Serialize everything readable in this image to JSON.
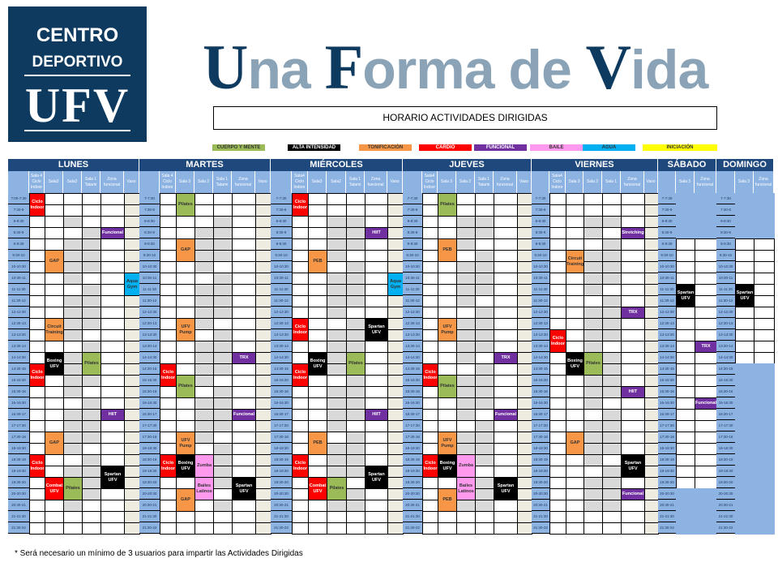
{
  "logo": {
    "line1": "CENTRO",
    "line2": "DEPORTIVO",
    "line3": "UFV"
  },
  "slogan": {
    "w1_cap": "U",
    "w1_rest": "na ",
    "w2_cap": "F",
    "w2_rest": "orma de ",
    "w3_cap": "V",
    "w3_rest": "ida"
  },
  "subtitle": "HORARIO ACTIVIDADES DIRIGIDAS",
  "legend": [
    {
      "key": "cuerpo",
      "label": "CUERPO Y MENTE",
      "color": "#9bbb59",
      "text": "#333333"
    },
    {
      "key": "alta",
      "label": "ALTA INTENSIDAD",
      "color": "#000000",
      "text": "#ffffff"
    },
    {
      "key": "tono",
      "label": "TONIFICACIÓN",
      "color": "#f79646",
      "text": "#333333"
    },
    {
      "key": "cardio",
      "label": "CARDIO",
      "color": "#ff0000",
      "text": "#ffffff"
    },
    {
      "key": "funcional",
      "label": "FUNCIONAL",
      "color": "#7030a0",
      "text": "#ffffff"
    },
    {
      "key": "baile",
      "label": "BAILE",
      "color": "#ff99ee",
      "text": "#333333"
    },
    {
      "key": "agua",
      "label": "AGUA",
      "color": "#00b0f0",
      "text": "#333333"
    },
    {
      "key": "iniciacion",
      "label": "INICIACIÓN",
      "color": "#ffff00",
      "text": "#333333"
    }
  ],
  "times": [
    "7-7:30",
    "7:30-8",
    "8-8:30",
    "8:30-9",
    "9-9:30",
    "9:30-10",
    "10-10:30",
    "10:30-11",
    "11-11:30",
    "11:30-12",
    "12-12:30",
    "12:30-13",
    "13-13:30",
    "13:30-14",
    "14-14:30",
    "14:30-15",
    "15-15:30",
    "15:30-16",
    "16-16:30",
    "16:30-17",
    "17-17:30",
    "17:30-18",
    "18-18:30",
    "18:30-19",
    "19-19:30",
    "19:30-20",
    "20-20:30",
    "20:30-21",
    "21-21:30",
    "21:30-22"
  ],
  "first_time_lunes": "7:00-7:30",
  "days": [
    {
      "name": "LUNES",
      "rooms": [
        "Sala 4 Ciclo Indoor",
        "Sala3",
        "Sala2",
        "Sala 1 Tatami",
        "Zona funcional",
        "Vaso"
      ],
      "activities": [
        {
          "room": 0,
          "start": "7:00",
          "end": "8:00",
          "name": "Ciclo Indoor",
          "cat": "cardio"
        },
        {
          "room": 4,
          "start": "8:30",
          "end": "9:00",
          "name": "Funcional",
          "cat": "funcional"
        },
        {
          "room": 1,
          "start": "9:30",
          "end": "10:30",
          "name": "GAP",
          "cat": "tono"
        },
        {
          "room": 5,
          "start": "10:30",
          "end": "11:30",
          "name": "Aqua Gym",
          "cat": "agua"
        },
        {
          "room": 1,
          "start": "12:30",
          "end": "13:30",
          "name": "Circuit Training",
          "cat": "tono"
        },
        {
          "room": 1,
          "start": "14:00",
          "end": "15:00",
          "name": "Boxing UFV",
          "cat": "alta"
        },
        {
          "room": 3,
          "start": "14:00",
          "end": "15:00",
          "name": "Pilates",
          "cat": "cuerpo"
        },
        {
          "room": 0,
          "start": "14:30",
          "end": "15:30",
          "name": "Ciclo Indoor",
          "cat": "cardio"
        },
        {
          "room": 4,
          "start": "16:30",
          "end": "17:00",
          "name": "HIIT",
          "cat": "funcional"
        },
        {
          "room": 1,
          "start": "17:30",
          "end": "18:30",
          "name": "GAP",
          "cat": "tono"
        },
        {
          "room": 0,
          "start": "18:30",
          "end": "19:30",
          "name": "Ciclo Indoor",
          "cat": "cardio"
        },
        {
          "room": 4,
          "start": "19:00",
          "end": "20:00",
          "name": "Spartan UFV",
          "cat": "alta"
        },
        {
          "room": 1,
          "start": "19:30",
          "end": "20:30",
          "name": "Combat UFV",
          "cat": "cardio"
        },
        {
          "room": 2,
          "start": "19:30",
          "end": "20:30",
          "name": "Pilates",
          "cat": "cuerpo"
        }
      ]
    },
    {
      "name": "MARTES",
      "rooms": [
        "Sala 4 Ciclo Indoor",
        "Sala 3",
        "Sala 2",
        "Sala 1 Tatami",
        "Zona funcional",
        "Vaso"
      ],
      "activities": [
        {
          "room": 1,
          "start": "7:00",
          "end": "8:00",
          "name": "Pilates",
          "cat": "cuerpo"
        },
        {
          "room": 1,
          "start": "9:00",
          "end": "10:00",
          "name": "GAP",
          "cat": "tono"
        },
        {
          "room": 1,
          "start": "12:30",
          "end": "13:30",
          "name": "UFV Pump",
          "cat": "tono"
        },
        {
          "room": 4,
          "start": "14:00",
          "end": "14:30",
          "name": "TRX",
          "cat": "funcional"
        },
        {
          "room": 0,
          "start": "14:30",
          "end": "15:30",
          "name": "Ciclo Indoor",
          "cat": "cardio"
        },
        {
          "room": 1,
          "start": "15:00",
          "end": "16:00",
          "name": "Pilates",
          "cat": "cuerpo"
        },
        {
          "room": 4,
          "start": "16:30",
          "end": "17:00",
          "name": "Funcional",
          "cat": "funcional"
        },
        {
          "room": 1,
          "start": "17:30",
          "end": "18:30",
          "name": "UFV Pump",
          "cat": "tono"
        },
        {
          "room": 0,
          "start": "18:30",
          "end": "19:30",
          "name": "Ciclo Indoor",
          "cat": "cardio"
        },
        {
          "room": 1,
          "start": "18:30",
          "end": "19:30",
          "name": "Boxing UFV",
          "cat": "alta"
        },
        {
          "room": 2,
          "start": "18:30",
          "end": "19:30",
          "name": "Zumba",
          "cat": "baile"
        },
        {
          "room": 2,
          "start": "19:30",
          "end": "20:30",
          "name": "Bailes Latinos",
          "cat": "baile"
        },
        {
          "room": 4,
          "start": "19:30",
          "end": "20:30",
          "name": "Spartan UFV",
          "cat": "alta"
        },
        {
          "room": 1,
          "start": "20:00",
          "end": "21:00",
          "name": "GAP",
          "cat": "tono"
        }
      ]
    },
    {
      "name": "MIÉRCOLES",
      "rooms": [
        "Sala4 Ciclo Indoor",
        "Sala3",
        "Sala2",
        "Sala 1 Tatami",
        "Zona funcional",
        "Vaso"
      ],
      "activities": [
        {
          "room": 0,
          "start": "7:00",
          "end": "8:00",
          "name": "Ciclo Indoor",
          "cat": "cardio"
        },
        {
          "room": 4,
          "start": "8:30",
          "end": "9:00",
          "name": "HIIT",
          "cat": "funcional"
        },
        {
          "room": 1,
          "start": "9:30",
          "end": "10:30",
          "name": "PEB",
          "cat": "tono"
        },
        {
          "room": 5,
          "start": "10:30",
          "end": "11:30",
          "name": "Aqua Gym",
          "cat": "agua"
        },
        {
          "room": 0,
          "start": "12:30",
          "end": "13:30",
          "name": "Ciclo Indoor",
          "cat": "cardio"
        },
        {
          "room": 4,
          "start": "12:30",
          "end": "13:30",
          "name": "Spartan UFV",
          "cat": "alta"
        },
        {
          "room": 1,
          "start": "14:00",
          "end": "15:00",
          "name": "Boxing UFV",
          "cat": "alta"
        },
        {
          "room": 3,
          "start": "14:00",
          "end": "15:00",
          "name": "Pilates",
          "cat": "cuerpo"
        },
        {
          "room": 0,
          "start": "14:30",
          "end": "15:30",
          "name": "Ciclo Indoor",
          "cat": "cardio"
        },
        {
          "room": 4,
          "start": "16:30",
          "end": "17:00",
          "name": "HIIT",
          "cat": "funcional"
        },
        {
          "room": 1,
          "start": "17:30",
          "end": "18:30",
          "name": "PEB",
          "cat": "tono"
        },
        {
          "room": 0,
          "start": "18:30",
          "end": "19:30",
          "name": "Ciclo Indoor",
          "cat": "cardio"
        },
        {
          "room": 4,
          "start": "19:00",
          "end": "20:00",
          "name": "Spartan UFV",
          "cat": "alta"
        },
        {
          "room": 1,
          "start": "19:30",
          "end": "20:30",
          "name": "Combat UFV",
          "cat": "cardio"
        },
        {
          "room": 2,
          "start": "19:30",
          "end": "20:30",
          "name": "Pilates",
          "cat": "cuerpo"
        }
      ]
    },
    {
      "name": "JUEVES",
      "rooms": [
        "Sala4 Ciclo Indoor",
        "Sala 3",
        "Sala 2",
        "Sala 1 Tatami",
        "Zona funcional",
        "Vaso"
      ],
      "activities": [
        {
          "room": 1,
          "start": "7:00",
          "end": "8:00",
          "name": "Pilates",
          "cat": "cuerpo"
        },
        {
          "room": 1,
          "start": "9:00",
          "end": "10:00",
          "name": "PEB",
          "cat": "tono"
        },
        {
          "room": 1,
          "start": "12:30",
          "end": "13:30",
          "name": "UFV Pump",
          "cat": "tono"
        },
        {
          "room": 4,
          "start": "14:00",
          "end": "14:30",
          "name": "TRX",
          "cat": "funcional"
        },
        {
          "room": 0,
          "start": "14:30",
          "end": "15:30",
          "name": "Ciclo Indoor",
          "cat": "cardio"
        },
        {
          "room": 1,
          "start": "15:00",
          "end": "16:00",
          "name": "Pilates",
          "cat": "cuerpo"
        },
        {
          "room": 4,
          "start": "16:30",
          "end": "17:00",
          "name": "Funcional",
          "cat": "funcional"
        },
        {
          "room": 1,
          "start": "17:30",
          "end": "18:30",
          "name": "UFV Pump",
          "cat": "tono"
        },
        {
          "room": 0,
          "start": "18:30",
          "end": "19:30",
          "name": "Ciclo Indoor",
          "cat": "cardio"
        },
        {
          "room": 1,
          "start": "18:30",
          "end": "19:30",
          "name": "Boxing UFV",
          "cat": "alta"
        },
        {
          "room": 2,
          "start": "18:30",
          "end": "19:30",
          "name": "Zumba",
          "cat": "baile"
        },
        {
          "room": 2,
          "start": "19:30",
          "end": "20:30",
          "name": "Bailes Latinos",
          "cat": "baile"
        },
        {
          "room": 4,
          "start": "19:30",
          "end": "20:30",
          "name": "Spartan UFV",
          "cat": "alta"
        },
        {
          "room": 1,
          "start": "20:00",
          "end": "21:00",
          "name": "PEB",
          "cat": "tono"
        }
      ]
    },
    {
      "name": "VIERNES",
      "rooms": [
        "Sala4 Ciclo Indoor",
        "Sala 3",
        "Sala 2",
        "Sala 1",
        "Zona funcional",
        "Vaso"
      ],
      "activities": [
        {
          "room": 4,
          "start": "8:30",
          "end": "9:00",
          "name": "Stretching",
          "cat": "funcional"
        },
        {
          "room": 1,
          "start": "9:30",
          "end": "10:30",
          "name": "Circuit Training",
          "cat": "tono"
        },
        {
          "room": 4,
          "start": "12:00",
          "end": "12:30",
          "name": "TRX",
          "cat": "funcional"
        },
        {
          "room": 0,
          "start": "13:00",
          "end": "14:00",
          "name": "Ciclo Indoor",
          "cat": "cardio"
        },
        {
          "room": 1,
          "start": "14:00",
          "end": "15:00",
          "name": "Boxing UFV",
          "cat": "alta"
        },
        {
          "room": 2,
          "start": "14:00",
          "end": "15:00",
          "name": "Pilates",
          "cat": "cuerpo"
        },
        {
          "room": 4,
          "start": "15:30",
          "end": "16:00",
          "name": "HIIT",
          "cat": "funcional"
        },
        {
          "room": 1,
          "start": "17:30",
          "end": "18:30",
          "name": "GAP",
          "cat": "tono"
        },
        {
          "room": 4,
          "start": "18:30",
          "end": "19:30",
          "name": "Spartan UFV",
          "cat": "alta"
        },
        {
          "room": 4,
          "start": "20:00",
          "end": "20:30",
          "name": "Funcional",
          "cat": "funcional"
        }
      ]
    },
    {
      "name": "SÁBADO",
      "rooms": [
        "Sala 3",
        "Zona funcional"
      ],
      "open": [
        "9:00",
        "20:00"
      ],
      "activities": [
        {
          "room": 0,
          "start": "11:00",
          "end": "12:00",
          "name": "Spartan UFV",
          "cat": "alta"
        },
        {
          "room": 1,
          "start": "13:30",
          "end": "14:00",
          "name": "TRX",
          "cat": "funcional"
        },
        {
          "room": 1,
          "start": "16:00",
          "end": "16:30",
          "name": "Funcional",
          "cat": "funcional"
        }
      ]
    },
    {
      "name": "DOMINGO",
      "rooms": [
        "Sala 3",
        "Zona funcional"
      ],
      "open": [
        "9:00",
        "14:30"
      ],
      "activities": [
        {
          "room": 0,
          "start": "11:00",
          "end": "12:00",
          "name": "Spartan UFV",
          "cat": "alta"
        }
      ]
    }
  ],
  "footnote": "* Será necesario un mínimo  de 3 usuarios para impartir las Actividades Dirigidas"
}
